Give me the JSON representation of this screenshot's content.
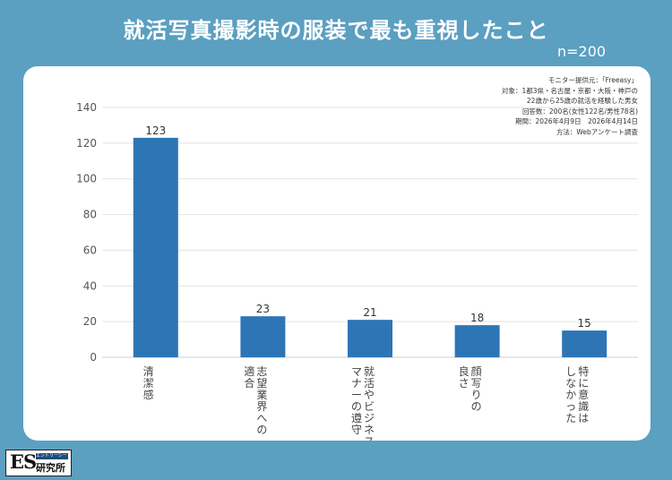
{
  "header": {
    "title": "就活写真撮影時の服装で最も重視したこと",
    "n_label": "n=200"
  },
  "info": [
    "モニター提供元：「Freeasy」",
    "対象：1都3県・名古屋・京都・大阪・神戸の",
    "22歳から25歳の就活を経験した男女",
    "回答数：200名(女性122名/男性78名)",
    "期間：2026年4月9日　2026年4月14日",
    "方法：Webアンケート調査"
  ],
  "logo": {
    "mark": "ES",
    "tagline": "エントリーシート",
    "name": "研究所"
  },
  "colors": {
    "background": "#5b9fc1",
    "bar": "#2e75b6",
    "grid": "#e3e3e3"
  },
  "chart_data": {
    "type": "bar",
    "categories": [
      "清潔感",
      "志望業界への適合",
      "就活やビジネスマナーの遵守",
      "顔写りの良さ",
      "特に意識はしなかった"
    ],
    "category_lines": [
      [
        "清潔感"
      ],
      [
        "志望業界への",
        "適合"
      ],
      [
        "就活やビジネス",
        "マナーの遵守"
      ],
      [
        "顔写りの",
        "良さ"
      ],
      [
        "特に意識は",
        "しなかった"
      ]
    ],
    "values": [
      123,
      23,
      21,
      18,
      15
    ],
    "ylim": [
      0,
      140
    ],
    "yticks": [
      0,
      20,
      40,
      60,
      80,
      100,
      120,
      140
    ],
    "grid": true,
    "data_labels": true
  }
}
